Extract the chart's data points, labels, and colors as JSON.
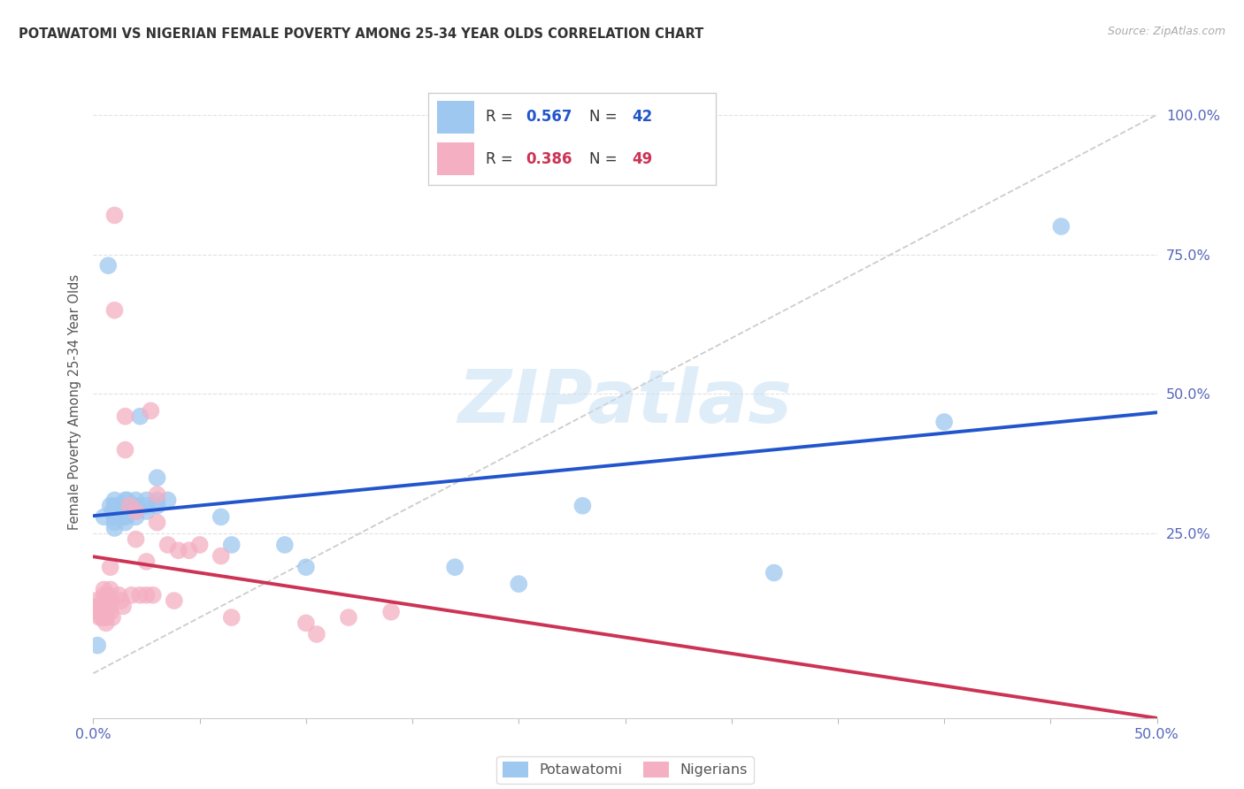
{
  "title": "POTAWATOMI VS NIGERIAN FEMALE POVERTY AMONG 25-34 YEAR OLDS CORRELATION CHART",
  "source": "Source: ZipAtlas.com",
  "ylabel": "Female Poverty Among 25-34 Year Olds",
  "xlim": [
    0.0,
    0.5
  ],
  "ylim": [
    -0.08,
    1.05
  ],
  "potawatomi_R": 0.567,
  "potawatomi_N": 42,
  "nigerian_R": 0.386,
  "nigerian_N": 49,
  "blue_scatter": "#9ec8f0",
  "pink_scatter": "#f4afc2",
  "blue_line": "#2255cc",
  "pink_line": "#cc3355",
  "ref_line_color": "#cccccc",
  "watermark_color": "#c5dff5",
  "grid_color": "#e2e2e2",
  "potawatomi_x": [
    0.002,
    0.005,
    0.007,
    0.008,
    0.009,
    0.01,
    0.01,
    0.01,
    0.01,
    0.01,
    0.012,
    0.013,
    0.014,
    0.015,
    0.015,
    0.015,
    0.015,
    0.016,
    0.016,
    0.018,
    0.02,
    0.02,
    0.02,
    0.02,
    0.022,
    0.025,
    0.025,
    0.025,
    0.03,
    0.03,
    0.03,
    0.035,
    0.06,
    0.065,
    0.09,
    0.1,
    0.17,
    0.2,
    0.23,
    0.32,
    0.4,
    0.455
  ],
  "potawatomi_y": [
    0.05,
    0.28,
    0.73,
    0.3,
    0.29,
    0.31,
    0.3,
    0.28,
    0.27,
    0.26,
    0.29,
    0.3,
    0.28,
    0.31,
    0.29,
    0.28,
    0.27,
    0.31,
    0.29,
    0.3,
    0.31,
    0.3,
    0.29,
    0.28,
    0.46,
    0.31,
    0.3,
    0.29,
    0.31,
    0.3,
    0.35,
    0.31,
    0.28,
    0.23,
    0.23,
    0.19,
    0.19,
    0.16,
    0.3,
    0.18,
    0.45,
    0.8
  ],
  "nigerian_x": [
    0.001,
    0.002,
    0.002,
    0.003,
    0.003,
    0.004,
    0.004,
    0.005,
    0.005,
    0.005,
    0.005,
    0.006,
    0.006,
    0.007,
    0.007,
    0.008,
    0.008,
    0.008,
    0.008,
    0.009,
    0.01,
    0.01,
    0.012,
    0.013,
    0.014,
    0.015,
    0.015,
    0.017,
    0.018,
    0.02,
    0.02,
    0.022,
    0.025,
    0.025,
    0.027,
    0.028,
    0.03,
    0.03,
    0.035,
    0.038,
    0.04,
    0.045,
    0.05,
    0.06,
    0.065,
    0.1,
    0.105,
    0.12,
    0.14
  ],
  "nigerian_y": [
    0.13,
    0.12,
    0.11,
    0.12,
    0.1,
    0.11,
    0.1,
    0.15,
    0.14,
    0.12,
    0.1,
    0.1,
    0.09,
    0.14,
    0.12,
    0.19,
    0.15,
    0.13,
    0.11,
    0.1,
    0.82,
    0.65,
    0.14,
    0.13,
    0.12,
    0.46,
    0.4,
    0.3,
    0.14,
    0.29,
    0.24,
    0.14,
    0.2,
    0.14,
    0.47,
    0.14,
    0.32,
    0.27,
    0.23,
    0.13,
    0.22,
    0.22,
    0.23,
    0.21,
    0.1,
    0.09,
    0.07,
    0.1,
    0.11
  ]
}
